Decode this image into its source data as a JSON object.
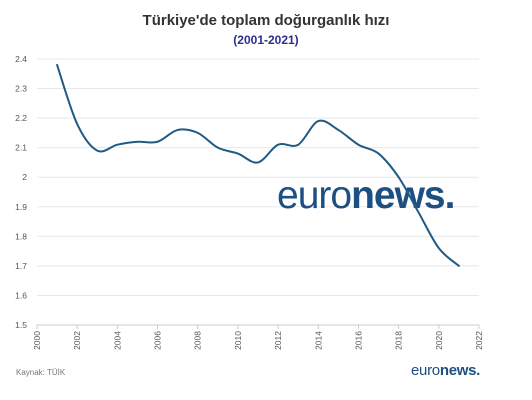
{
  "header": {
    "title": "Türkiye'de toplam doğurganlık hızı",
    "subtitle": "(2001-2021)"
  },
  "footer": {
    "source": "Kaynak: TÜİK",
    "logo_part1": "euro",
    "logo_part2": "news",
    "logo_dot": "."
  },
  "watermark": {
    "part1": "euro",
    "part2": "news",
    "dot": "."
  },
  "colors": {
    "line": "#1f5a85",
    "subtitle": "#2b2e8c",
    "logo": "#1d4f82",
    "grid": "#e8e8e8",
    "axis": "#cccccc"
  },
  "chart_data": {
    "type": "line",
    "title": "Türkiye'de toplam doğurganlık hızı",
    "subtitle": "(2001-2021)",
    "xlabel": "",
    "ylabel": "",
    "xlim": [
      2000,
      2022
    ],
    "ylim": [
      1.5,
      2.4
    ],
    "x_ticks": [
      2000,
      2002,
      2004,
      2006,
      2008,
      2010,
      2012,
      2014,
      2016,
      2018,
      2020,
      2022
    ],
    "y_ticks": [
      1.5,
      1.6,
      1.7,
      1.8,
      1.9,
      2,
      2.1,
      2.2,
      2.3,
      2.4
    ],
    "grid": true,
    "x": [
      2001,
      2002,
      2003,
      2004,
      2005,
      2006,
      2007,
      2008,
      2009,
      2010,
      2011,
      2012,
      2013,
      2014,
      2015,
      2016,
      2017,
      2018,
      2019,
      2020,
      2021
    ],
    "y": [
      2.38,
      2.18,
      2.09,
      2.11,
      2.12,
      2.12,
      2.16,
      2.15,
      2.1,
      2.08,
      2.05,
      2.11,
      2.11,
      2.19,
      2.16,
      2.11,
      2.08,
      2.0,
      1.88,
      1.76,
      1.7
    ]
  }
}
